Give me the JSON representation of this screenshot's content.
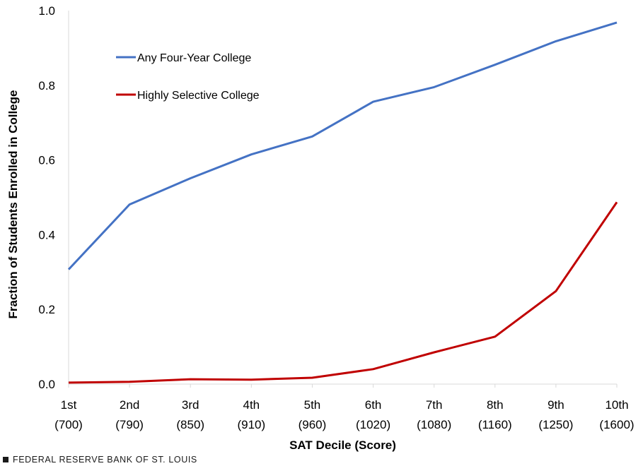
{
  "chart_data": {
    "type": "line",
    "x_ticks": [
      {
        "decile": "1st",
        "score": "(700)"
      },
      {
        "decile": "2nd",
        "score": "(790)"
      },
      {
        "decile": "3rd",
        "score": "(850)"
      },
      {
        "decile": "4th",
        "score": "(910)"
      },
      {
        "decile": "5th",
        "score": "(960)"
      },
      {
        "decile": "6th",
        "score": "(1020)"
      },
      {
        "decile": "7th",
        "score": "(1080)"
      },
      {
        "decile": "8th",
        "score": "(1160)"
      },
      {
        "decile": "9th",
        "score": "(1250)"
      },
      {
        "decile": "10th",
        "score": "(1600)"
      }
    ],
    "y_ticks": [
      "0.0",
      "0.2",
      "0.4",
      "0.6",
      "0.8",
      "1.0"
    ],
    "ylim": [
      0,
      1
    ],
    "xlabel": "SAT Decile (Score)",
    "ylabel": "Fraction of Students Enrolled in College",
    "grid": false,
    "legend_placement": "top-left",
    "series": [
      {
        "name": "Any Four-Year College",
        "color": "#4472c4",
        "values": [
          0.307,
          0.481,
          0.551,
          0.615,
          0.663,
          0.756,
          0.795,
          0.855,
          0.918,
          0.968
        ]
      },
      {
        "name": "Highly Selective College",
        "color": "#c00000",
        "values": [
          0.004,
          0.006,
          0.013,
          0.012,
          0.017,
          0.04,
          0.085,
          0.127,
          0.249,
          0.487
        ]
      }
    ]
  },
  "footer": {
    "source": "FEDERAL RESERVE BANK OF ST. LOUIS"
  }
}
